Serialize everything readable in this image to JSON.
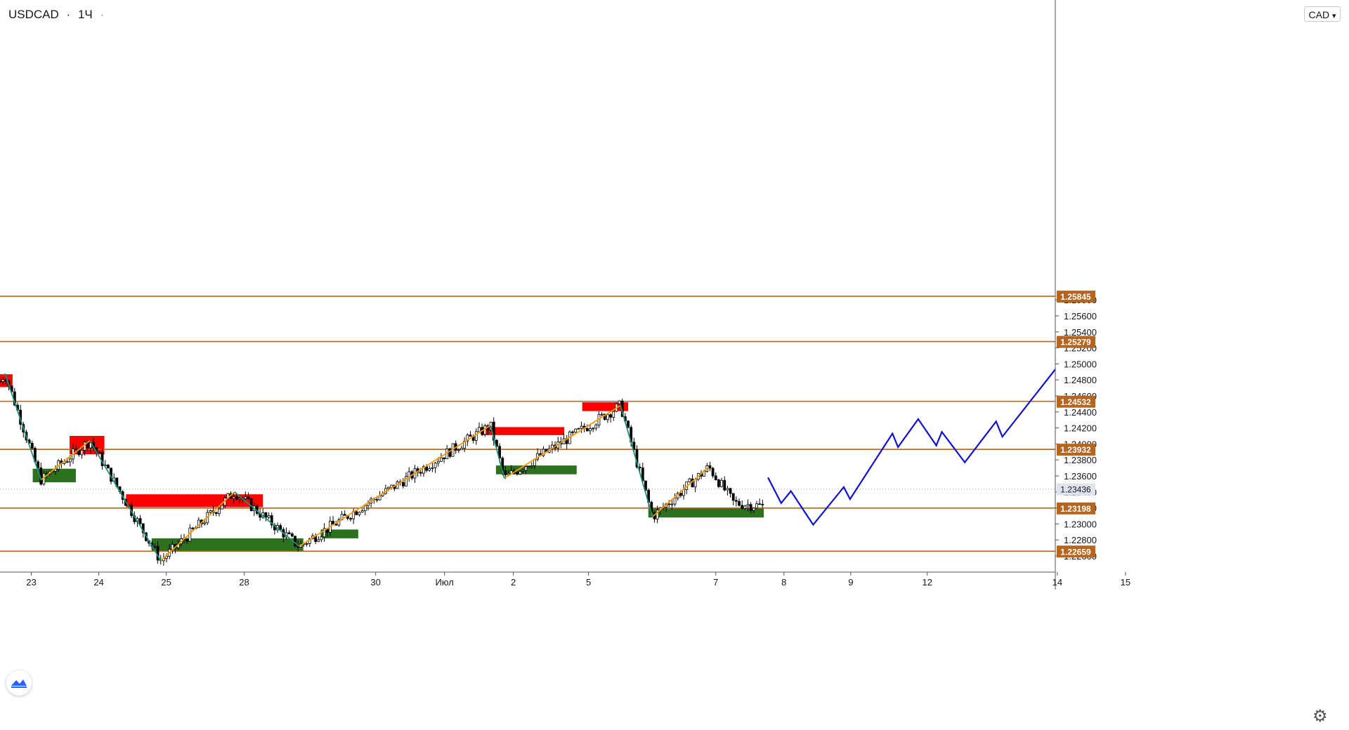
{
  "header": {
    "symbol": "USDCAD",
    "timeframe": "1Ч",
    "separator": "·",
    "dot": "·"
  },
  "currency_button": {
    "label": "CAD",
    "arrow": "▾"
  },
  "icons": {
    "settings": "gear-icon",
    "logo": "tradingview-logo-icon"
  },
  "colors": {
    "level_line": "#b5651d",
    "level_label_bg": "#b5651d",
    "demand_zone": "#2d7020",
    "supply_zone": "#ff0000",
    "up_swing": "#f59a00",
    "down_swing": "#1f8f7a",
    "forecast": "#1010d0",
    "candle": "#000000",
    "target_label": "#000000",
    "support_label": "#22dd22",
    "stop_label": "#ff0000"
  },
  "chart_data": {
    "type": "candlestick",
    "symbol": "USDCAD",
    "timeframe": "1Ч",
    "y_axis": {
      "range": [
        1.2244,
        1.2606
      ],
      "ticks": [
        1.226,
        1.228,
        1.23,
        1.232,
        1.234,
        1.236,
        1.238,
        1.24,
        1.242,
        1.244,
        1.246,
        1.248,
        1.25,
        1.252,
        1.254,
        1.256,
        1.258
      ],
      "tick_labels": [
        "1.22600",
        "1.22800",
        "1.23000",
        "1.23200",
        "1.23400",
        "1.23600",
        "1.23800",
        "1.24000",
        "1.24200",
        "1.24400",
        "1.24600",
        "1.24800",
        "1.25000",
        "1.25200",
        "1.25400",
        "1.25600",
        "1.25800"
      ]
    },
    "x_axis": {
      "ticks": [
        {
          "label": "23",
          "x": 4
        },
        {
          "label": "24",
          "x": 13.7
        },
        {
          "label": "25",
          "x": 23.4
        },
        {
          "label": "28",
          "x": 34.6
        },
        {
          "label": "30",
          "x": 53.5
        },
        {
          "label": "Июл",
          "x": 63.4
        },
        {
          "label": "2",
          "x": 73.3
        },
        {
          "label": "5",
          "x": 84.1
        },
        {
          "label": "7",
          "x": 102.4
        },
        {
          "label": "8",
          "x": 112.2
        },
        {
          "label": "9",
          "x": 121.8
        },
        {
          "label": "12",
          "x": 132.8
        },
        {
          "label": "14",
          "x": 151.5
        },
        {
          "label": "15",
          "x": 161.3
        }
      ]
    },
    "current_price": {
      "value": 1.23436,
      "label": "1.23436"
    },
    "levels": [
      {
        "value": 1.25845,
        "label": "1.25845"
      },
      {
        "value": 1.25279,
        "label": "1.25279"
      },
      {
        "value": 1.24532,
        "label": "1.24532"
      },
      {
        "value": 1.23932,
        "label": "1.23932"
      },
      {
        "value": 1.23198,
        "label": "1.23198"
      },
      {
        "value": 1.22659,
        "label": "1.22659"
      }
    ],
    "callouts": [
      {
        "label": "1.25845",
        "kind": "target",
        "value": 1.25845,
        "x": 158
      },
      {
        "label": "1.25279",
        "kind": "target",
        "value": 1.25279,
        "x": 158
      },
      {
        "label": "1.23198",
        "kind": "support",
        "value": 1.23198,
        "x": 158
      },
      {
        "label": "1.22659",
        "kind": "stop",
        "value": 1.22659,
        "x": 158
      }
    ],
    "supply_zones": [
      {
        "x1": -1,
        "x2": 1.3,
        "y_top": 1.2487,
        "y_bottom": 1.2471
      },
      {
        "x1": 9.5,
        "x2": 14.5,
        "y_top": 1.241,
        "y_bottom": 1.2387
      },
      {
        "x1": 17.6,
        "x2": 37.3,
        "y_top": 1.2337,
        "y_bottom": 1.2321
      },
      {
        "x1": 68.7,
        "x2": 80.6,
        "y_top": 1.2421,
        "y_bottom": 1.2411
      },
      {
        "x1": 83.2,
        "x2": 89.8,
        "y_top": 1.2452,
        "y_bottom": 1.2441
      }
    ],
    "demand_zones": [
      {
        "x1": 4.2,
        "x2": 10.4,
        "y_top": 1.2369,
        "y_bottom": 1.2352
      },
      {
        "x1": 21.3,
        "x2": 43.1,
        "y_top": 1.2282,
        "y_bottom": 1.2266
      },
      {
        "x1": 45.6,
        "x2": 51.0,
        "y_top": 1.2293,
        "y_bottom": 1.2282
      },
      {
        "x1": 70.8,
        "x2": 82.4,
        "y_top": 1.2373,
        "y_bottom": 1.2362
      },
      {
        "x1": 92.7,
        "x2": 109.3,
        "y_top": 1.232,
        "y_bottom": 1.2308
      }
    ],
    "up_swings": [
      [
        [
          5.4,
          1.2355
        ],
        [
          12.4,
          1.2404
        ]
      ],
      [
        [
          22.6,
          1.2254
        ],
        [
          33.2,
          1.234
        ]
      ],
      [
        [
          42.5,
          1.2272
        ],
        [
          70.0,
          1.2423
        ]
      ],
      [
        [
          72.0,
          1.2357
        ],
        [
          88.7,
          1.2448
        ]
      ],
      [
        [
          93.3,
          1.2309
        ],
        [
          101.4,
          1.2371
        ]
      ]
    ],
    "down_swings": [
      [
        [
          0.2,
          1.2488
        ],
        [
          5.4,
          1.2355
        ]
      ],
      [
        [
          12.4,
          1.2404
        ],
        [
          22.6,
          1.2254
        ]
      ],
      [
        [
          33.2,
          1.234
        ],
        [
          42.5,
          1.2272
        ]
      ],
      [
        [
          70.0,
          1.2423
        ],
        [
          72.0,
          1.2357
        ]
      ],
      [
        [
          88.7,
          1.2448
        ],
        [
          93.3,
          1.2309
        ]
      ]
    ],
    "forecast_path": [
      [
        109.9,
        1.2358
      ],
      [
        111.8,
        1.2326
      ],
      [
        113.2,
        1.2341
      ],
      [
        116.4,
        1.2299
      ],
      [
        120.8,
        1.2346
      ],
      [
        121.7,
        1.2331
      ],
      [
        127.8,
        1.2413
      ],
      [
        128.6,
        1.2396
      ],
      [
        131.5,
        1.2431
      ],
      [
        134.1,
        1.2398
      ],
      [
        134.9,
        1.2415
      ],
      [
        138.2,
        1.2377
      ],
      [
        142.7,
        1.2428
      ],
      [
        143.6,
        1.2409
      ],
      [
        155.9,
        1.2545
      ],
      [
        156.7,
        1.2528
      ],
      [
        159.6,
        1.2565
      ]
    ],
    "forecast_arrowhead": [
      [
        157.8,
        1.2562
      ],
      [
        159.6,
        1.2565
      ],
      [
        160.4,
        1.256
      ]
    ]
  }
}
